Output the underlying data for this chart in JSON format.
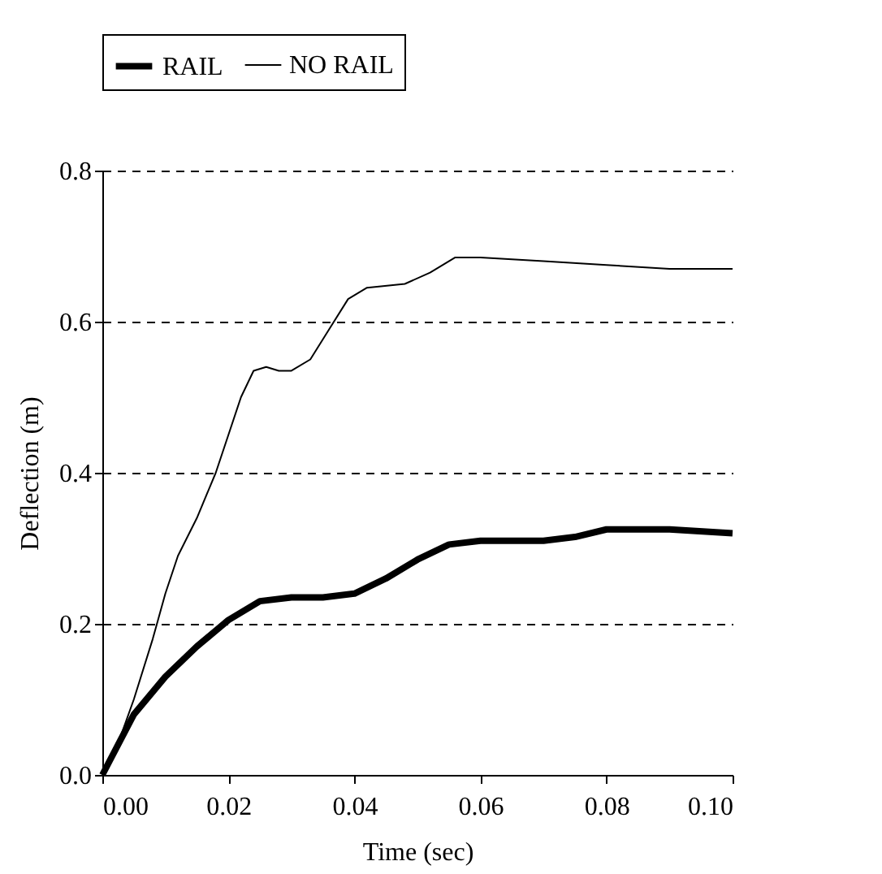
{
  "chart_data": {
    "type": "line",
    "xlabel": "Time (sec)",
    "ylabel": "Deflection (m)",
    "xlim": [
      0,
      0.1
    ],
    "xticks": [
      {
        "value": 0,
        "label": "0.00"
      },
      {
        "value": 0.02,
        "label": "0.02"
      },
      {
        "value": 0.04,
        "label": "0.04"
      },
      {
        "value": 0.06,
        "label": "0.06"
      },
      {
        "value": 0.08,
        "label": "0.08"
      },
      {
        "value": 0.1,
        "label": "0.10"
      }
    ],
    "ylim": [
      0,
      0.8
    ],
    "yticks": [
      {
        "value": 0,
        "label": "0.0"
      },
      {
        "value": 0.2,
        "label": "0.2"
      },
      {
        "value": 0.4,
        "label": "0.4"
      },
      {
        "value": 0.6,
        "label": "0.6"
      },
      {
        "value": 0.8,
        "label": "0.8"
      }
    ],
    "grid": "y",
    "legend": "top",
    "line_style": "solid",
    "marker": "none",
    "series": [
      {
        "name": "RAIL",
        "color": "#000000",
        "x": [
          0,
          0.005,
          0.01,
          0.015,
          0.02,
          0.025,
          0.03,
          0.035,
          0.04,
          0.045,
          0.05,
          0.055,
          0.06,
          0.07,
          0.075,
          0.08,
          0.09,
          0.1
        ],
        "values": [
          0,
          0.08,
          0.13,
          0.17,
          0.205,
          0.23,
          0.235,
          0.235,
          0.24,
          0.26,
          0.285,
          0.305,
          0.31,
          0.31,
          0.315,
          0.325,
          0.325,
          0.32
        ]
      },
      {
        "name": "NO RAIL",
        "color": "#000000",
        "x": [
          0,
          0.002,
          0.005,
          0.008,
          0.01,
          0.012,
          0.015,
          0.018,
          0.02,
          0.022,
          0.024,
          0.026,
          0.028,
          0.03,
          0.033,
          0.036,
          0.039,
          0.042,
          0.048,
          0.052,
          0.056,
          0.06,
          0.07,
          0.08,
          0.09,
          0.1
        ],
        "values": [
          0,
          0.03,
          0.1,
          0.18,
          0.24,
          0.29,
          0.34,
          0.4,
          0.45,
          0.5,
          0.535,
          0.54,
          0.535,
          0.535,
          0.55,
          0.59,
          0.63,
          0.645,
          0.65,
          0.665,
          0.685,
          0.685,
          0.68,
          0.675,
          0.67,
          0.67
        ]
      }
    ]
  }
}
